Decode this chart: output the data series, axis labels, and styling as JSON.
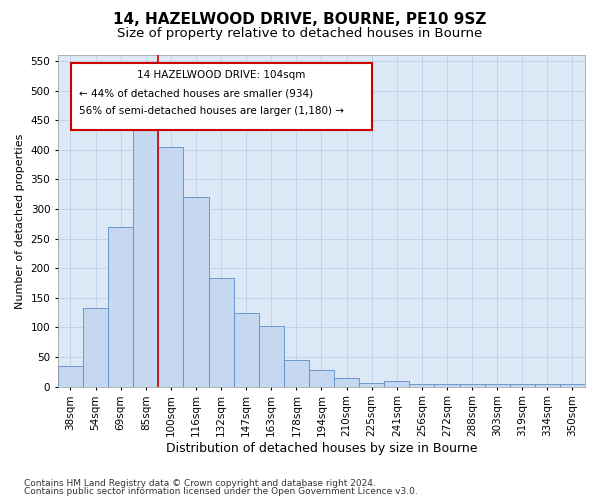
{
  "title1": "14, HAZELWOOD DRIVE, BOURNE, PE10 9SZ",
  "title2": "Size of property relative to detached houses in Bourne",
  "xlabel": "Distribution of detached houses by size in Bourne",
  "ylabel": "Number of detached properties",
  "categories": [
    "38sqm",
    "54sqm",
    "69sqm",
    "85sqm",
    "100sqm",
    "116sqm",
    "132sqm",
    "147sqm",
    "163sqm",
    "178sqm",
    "194sqm",
    "210sqm",
    "225sqm",
    "241sqm",
    "256sqm",
    "272sqm",
    "288sqm",
    "303sqm",
    "319sqm",
    "334sqm",
    "350sqm"
  ],
  "values": [
    35,
    133,
    270,
    435,
    405,
    320,
    183,
    125,
    103,
    45,
    28,
    15,
    7,
    9,
    5,
    4,
    4,
    4,
    4,
    4,
    4
  ],
  "bar_color": "#c5d8f0",
  "bar_edge_color": "#5b8dc8",
  "background_color": "#ffffff",
  "plot_bg_color": "#dce8f5",
  "grid_color": "#b8cce0",
  "vline_color": "#cc0000",
  "ylim": [
    0,
    560
  ],
  "yticks": [
    0,
    50,
    100,
    150,
    200,
    250,
    300,
    350,
    400,
    450,
    500,
    550
  ],
  "annotation_title": "14 HAZELWOOD DRIVE: 104sqm",
  "annotation_line1": "← 44% of detached houses are smaller (934)",
  "annotation_line2": "56% of semi-detached houses are larger (1,180) →",
  "footer1": "Contains HM Land Registry data © Crown copyright and database right 2024.",
  "footer2": "Contains public sector information licensed under the Open Government Licence v3.0.",
  "title1_fontsize": 11,
  "title2_fontsize": 9.5,
  "xlabel_fontsize": 9,
  "ylabel_fontsize": 8,
  "tick_fontsize": 7.5,
  "annot_fontsize": 7.5,
  "footer_fontsize": 6.5
}
